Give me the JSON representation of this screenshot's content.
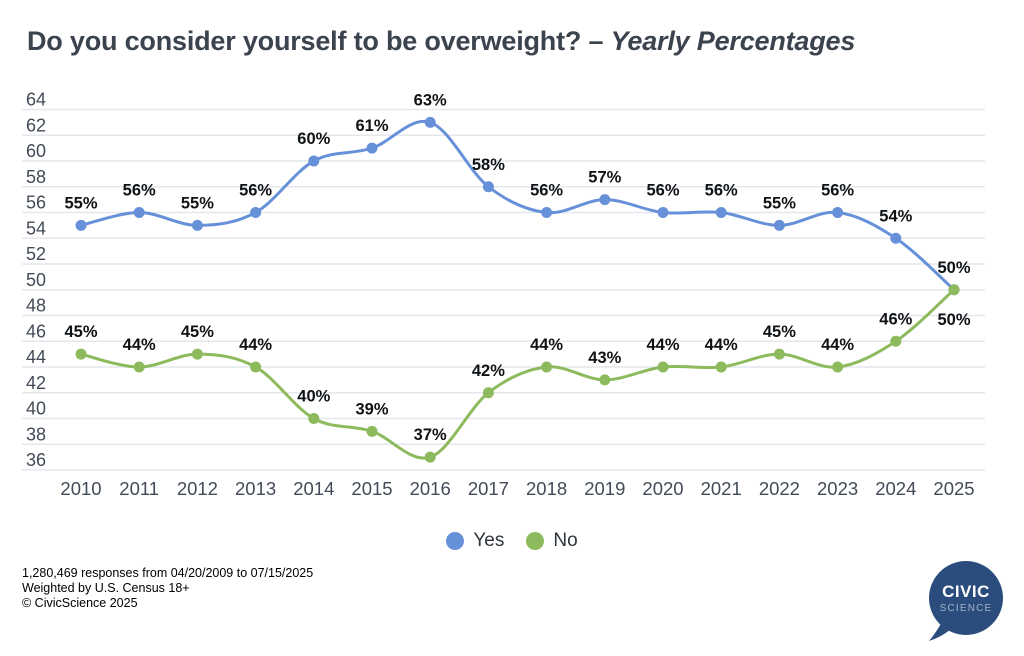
{
  "title": {
    "prefix": "Do you consider yourself to be overweight? – ",
    "emphasis": "Yearly Percentages"
  },
  "chart_data": {
    "type": "line",
    "title": "Do you consider yourself to be overweight? – Yearly Percentages",
    "x": [
      2010,
      2011,
      2012,
      2013,
      2014,
      2015,
      2016,
      2017,
      2018,
      2019,
      2020,
      2021,
      2022,
      2023,
      2024,
      2025
    ],
    "series": [
      {
        "name": "Yes",
        "color": "#6691d9",
        "values": [
          55,
          56,
          55,
          56,
          60,
          61,
          63,
          58,
          56,
          57,
          56,
          56,
          55,
          56,
          54,
          50
        ]
      },
      {
        "name": "No",
        "color": "#8cba5c",
        "values": [
          45,
          44,
          45,
          44,
          40,
          39,
          37,
          42,
          44,
          43,
          44,
          44,
          45,
          44,
          46,
          50
        ]
      }
    ],
    "label_format": "{v}%",
    "y_ticks": [
      64,
      62,
      60,
      58,
      56,
      54,
      52,
      50,
      48,
      46,
      44,
      42,
      40,
      38,
      36
    ],
    "ylim": [
      36,
      64
    ],
    "xlabel": "",
    "ylabel": "",
    "grid": "horizontal",
    "legend_position": "bottom"
  },
  "legend": {
    "items": [
      {
        "label": "Yes",
        "color": "#6691d9"
      },
      {
        "label": "No",
        "color": "#8cba5c"
      }
    ]
  },
  "footer": {
    "lines": [
      "1,280,469 responses from 04/20/2009 to 07/15/2025",
      "Weighted by U.S. Census 18+",
      "© CivicScience 2025"
    ]
  },
  "logo": {
    "line1": "CIVIC",
    "line2": "SCIENCE"
  },
  "colors": {
    "yes_line": "#6691d9",
    "no_line": "#8cba5c",
    "grid": "#e4e7eb",
    "axis_text": "#424b57",
    "title_text": "#3b434e",
    "data_label_text": "#101316",
    "logo_navy": "#2b4d7d",
    "logo_science_text": "#9fb3cc"
  }
}
